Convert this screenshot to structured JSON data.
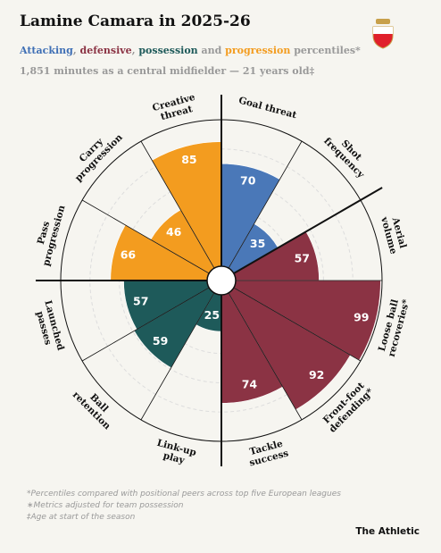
{
  "chart_data": {
    "type": "polar_bar",
    "title": "Lamine Camara in 2025-26",
    "subtitle": [
      {
        "text": "Attacking",
        "color": "#3f6fb5"
      },
      {
        "text": ", "
      },
      {
        "text": "defensive",
        "color": "#8b3344"
      },
      {
        "text": ", "
      },
      {
        "text": "possession",
        "color": "#1e5a5a"
      },
      {
        "text": " and "
      },
      {
        "text": "progression",
        "color": "#f39c1f"
      },
      {
        "text": " percentiles*"
      }
    ],
    "note": "1,851 minutes as a central midfielder — 21 years old‡",
    "categories": [
      [
        "Goal threat"
      ],
      [
        "Shot",
        "frequency"
      ],
      [
        "Aerial",
        "volume"
      ],
      [
        "Loose ball",
        "recoveries*"
      ],
      [
        "Front-foot",
        "defending*"
      ],
      [
        "Tackle",
        "success"
      ],
      [
        "Link-up",
        "play"
      ],
      [
        "Ball",
        "retention"
      ],
      [
        "Launched",
        "passes"
      ],
      [
        "Pass",
        "progression"
      ],
      [
        "Carry",
        "progression"
      ],
      [
        "Creative",
        "threat"
      ]
    ],
    "values": [
      70,
      35,
      57,
      99,
      92,
      74,
      25,
      59,
      57,
      66,
      46,
      85
    ],
    "colors": [
      "#4a78b8",
      "#4a78b8",
      "#8b3344",
      "#8b3344",
      "#8b3344",
      "#8b3344",
      "#1e5a5a",
      "#1e5a5a",
      "#1e5a5a",
      "#f39c1f",
      "#f39c1f",
      "#f39c1f"
    ],
    "rlim": [
      0,
      100
    ],
    "rgrid": [
      20,
      40,
      60,
      80
    ],
    "group_starts": [
      0,
      2,
      6,
      9
    ],
    "footnotes": [
      "*Percentiles compared with positional peers across top five European leagues",
      "∗Metrics adjusted for team possession",
      "‡Age at start of the season"
    ],
    "source": "The Athletic"
  }
}
